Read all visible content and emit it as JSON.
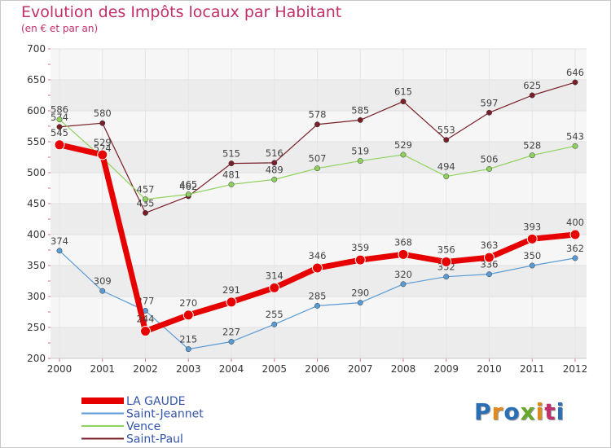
{
  "title": "Evolution des Impôts locaux par Habitant",
  "subtitle": "(en € et par an)",
  "logo": {
    "text": "Proxiti",
    "colors": [
      "#2a6fb5",
      "#e08a1e",
      "#2a6fb5",
      "#6aa82a",
      "#e08a1e",
      "#c0306a",
      "#2a6fb5"
    ]
  },
  "chart_data": {
    "type": "line",
    "title": "Evolution des Impôts locaux par Habitant",
    "subtitle": "(en € et par an)",
    "x": [
      "2000",
      "2001",
      "2002",
      "2003",
      "2004",
      "2005",
      "2006",
      "2007",
      "2008",
      "2009",
      "2010",
      "2011",
      "2012"
    ],
    "ylim": [
      200,
      700
    ],
    "yticks": [
      200,
      250,
      300,
      350,
      400,
      450,
      500,
      550,
      600,
      650,
      700
    ],
    "grid": true,
    "legend_position": "bottom-left",
    "series": [
      {
        "name": "Saint-Paul",
        "color": "#7a1f2a",
        "values": [
          574,
          580,
          435,
          462,
          515,
          516,
          578,
          585,
          615,
          553,
          597,
          625,
          646
        ]
      },
      {
        "name": "Vence",
        "color": "#8fd15f",
        "values": [
          586,
          524,
          457,
          465,
          481,
          489,
          507,
          519,
          529,
          494,
          506,
          528,
          543
        ]
      },
      {
        "name": "Saint-Jeannet",
        "color": "#5b9bd5",
        "values": [
          374,
          309,
          277,
          215,
          227,
          255,
          285,
          290,
          320,
          332,
          336,
          350,
          362
        ]
      },
      {
        "name": "LA GAUDE",
        "color": "#e60000",
        "values": [
          545,
          529,
          244,
          270,
          291,
          314,
          346,
          359,
          368,
          356,
          363,
          393,
          400
        ]
      }
    ],
    "legend": [
      "LA GAUDE",
      "Saint-Jeannet",
      "Vence",
      "Saint-Paul"
    ]
  }
}
